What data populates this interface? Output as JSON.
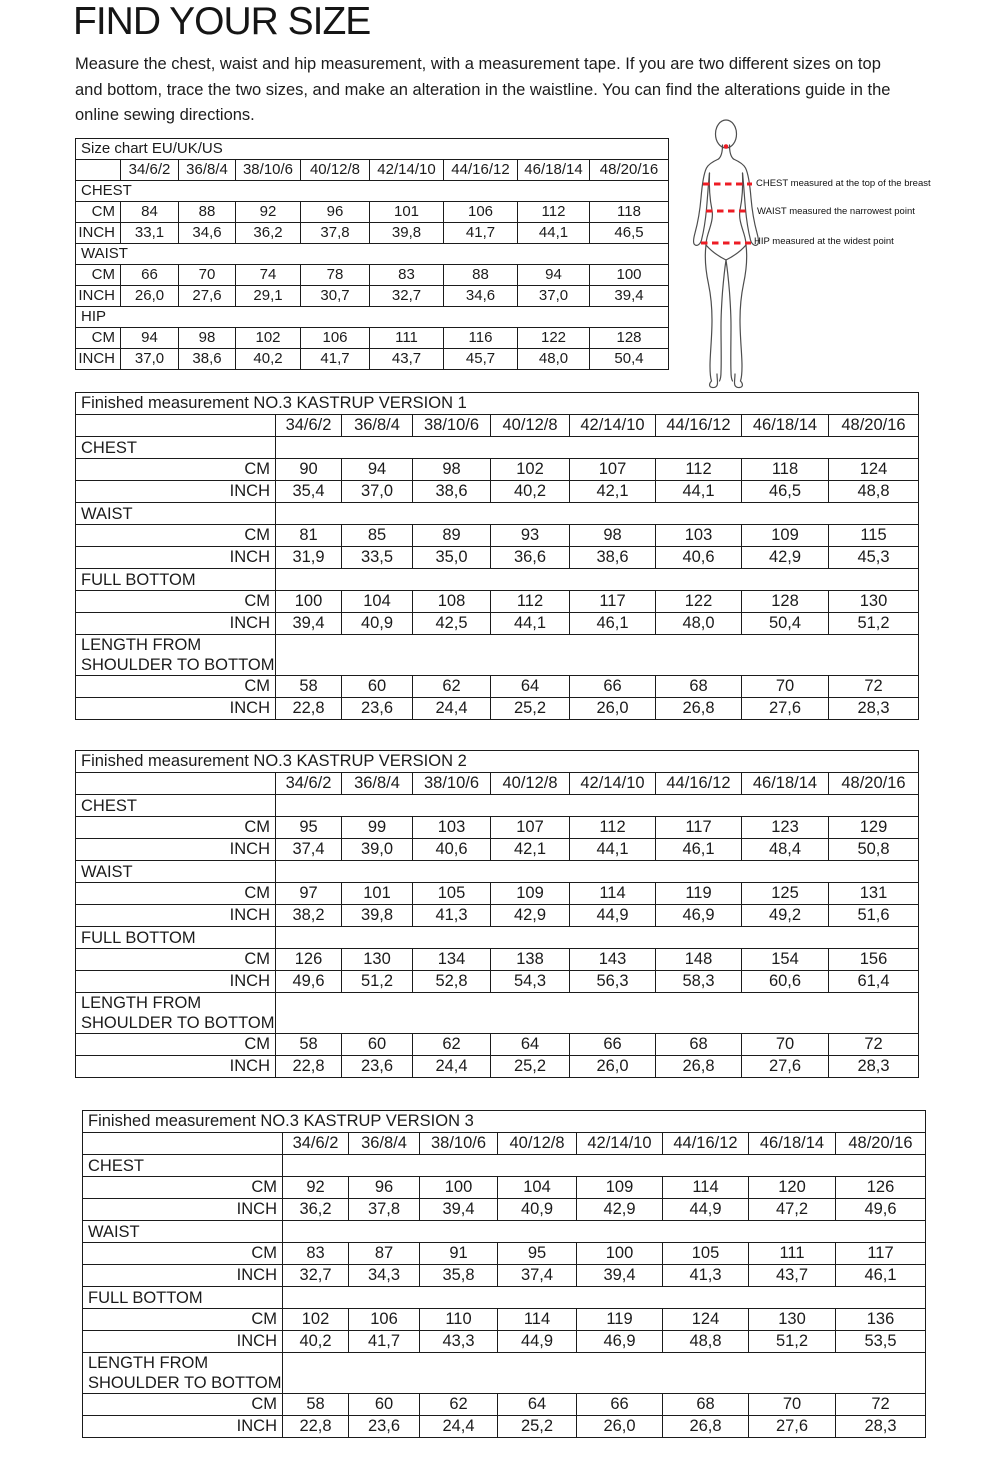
{
  "title": "FIND YOUR SIZE",
  "intro": "Measure the chest, waist and hip measurement, with a measurement tape. If you are two different sizes on top and bottom, trace the two sizes, and make an alteration in the waistline. You can find the alterations guide in the online sewing directions.",
  "sizes": [
    "34/6/2",
    "36/8/4",
    "38/10/6",
    "40/12/8",
    "42/14/10",
    "44/16/12",
    "46/18/14",
    "48/20/16"
  ],
  "row_labels": {
    "cm": "CM",
    "inch": "INCH"
  },
  "colors": {
    "accent_red": "#ed1c24",
    "line_black": "#1b1b1b"
  },
  "figure": {
    "annotations": [
      "CHEST measured at the top of the breast",
      "WAIST measured the narrowest point",
      "HIP measured at the widest point"
    ]
  },
  "size_chart": {
    "title": "Size chart EU/UK/US",
    "sections": [
      {
        "label": "CHEST",
        "cm": [
          "84",
          "88",
          "92",
          "96",
          "101",
          "106",
          "112",
          "118"
        ],
        "inch": [
          "33,1",
          "34,6",
          "36,2",
          "37,8",
          "39,8",
          "41,7",
          "44,1",
          "46,5"
        ]
      },
      {
        "label": "WAIST",
        "cm": [
          "66",
          "70",
          "74",
          "78",
          "83",
          "88",
          "94",
          "100"
        ],
        "inch": [
          "26,0",
          "27,6",
          "29,1",
          "30,7",
          "32,7",
          "34,6",
          "37,0",
          "39,4"
        ]
      },
      {
        "label": "HIP",
        "cm": [
          "94",
          "98",
          "102",
          "106",
          "111",
          "116",
          "122",
          "128"
        ],
        "inch": [
          "37,0",
          "38,6",
          "40,2",
          "41,7",
          "43,7",
          "45,7",
          "48,0",
          "50,4"
        ]
      }
    ]
  },
  "finished_tables": [
    {
      "title": "Finished measurement NO.3 KASTRUP VERSION 1",
      "sections": [
        {
          "label": "CHEST",
          "cm": [
            "90",
            "94",
            "98",
            "102",
            "107",
            "112",
            "118",
            "124"
          ],
          "inch": [
            "35,4",
            "37,0",
            "38,6",
            "40,2",
            "42,1",
            "44,1",
            "46,5",
            "48,8"
          ]
        },
        {
          "label": "WAIST",
          "cm": [
            "81",
            "85",
            "89",
            "93",
            "98",
            "103",
            "109",
            "115"
          ],
          "inch": [
            "31,9",
            "33,5",
            "35,0",
            "36,6",
            "38,6",
            "40,6",
            "42,9",
            "45,3"
          ]
        },
        {
          "label": "FULL BOTTOM",
          "cm": [
            "100",
            "104",
            "108",
            "112",
            "117",
            "122",
            "128",
            "130"
          ],
          "inch": [
            "39,4",
            "40,9",
            "42,5",
            "44,1",
            "46,1",
            "48,0",
            "50,4",
            "51,2"
          ]
        },
        {
          "label": "LENGTH FROM\nSHOULDER TO BOTTOM",
          "cm": [
            "58",
            "60",
            "62",
            "64",
            "66",
            "68",
            "70",
            "72"
          ],
          "inch": [
            "22,8",
            "23,6",
            "24,4",
            "25,2",
            "26,0",
            "26,8",
            "27,6",
            "28,3"
          ]
        }
      ]
    },
    {
      "title": "Finished measurement NO.3 KASTRUP VERSION 2",
      "sections": [
        {
          "label": "CHEST",
          "cm": [
            "95",
            "99",
            "103",
            "107",
            "112",
            "117",
            "123",
            "129"
          ],
          "inch": [
            "37,4",
            "39,0",
            "40,6",
            "42,1",
            "44,1",
            "46,1",
            "48,4",
            "50,8"
          ]
        },
        {
          "label": "WAIST",
          "cm": [
            "97",
            "101",
            "105",
            "109",
            "114",
            "119",
            "125",
            "131"
          ],
          "inch": [
            "38,2",
            "39,8",
            "41,3",
            "42,9",
            "44,9",
            "46,9",
            "49,2",
            "51,6"
          ]
        },
        {
          "label": "FULL BOTTOM",
          "cm": [
            "126",
            "130",
            "134",
            "138",
            "143",
            "148",
            "154",
            "156"
          ],
          "inch": [
            "49,6",
            "51,2",
            "52,8",
            "54,3",
            "56,3",
            "58,3",
            "60,6",
            "61,4"
          ]
        },
        {
          "label": "LENGTH FROM\nSHOULDER TO BOTTOM",
          "cm": [
            "58",
            "60",
            "62",
            "64",
            "66",
            "68",
            "70",
            "72"
          ],
          "inch": [
            "22,8",
            "23,6",
            "24,4",
            "25,2",
            "26,0",
            "26,8",
            "27,6",
            "28,3"
          ]
        }
      ]
    },
    {
      "title": "Finished measurement NO.3 KASTRUP VERSION 3",
      "sections": [
        {
          "label": "CHEST",
          "cm": [
            "92",
            "96",
            "100",
            "104",
            "109",
            "114",
            "120",
            "126"
          ],
          "inch": [
            "36,2",
            "37,8",
            "39,4",
            "40,9",
            "42,9",
            "44,9",
            "47,2",
            "49,6"
          ]
        },
        {
          "label": "WAIST",
          "cm": [
            "83",
            "87",
            "91",
            "95",
            "100",
            "105",
            "111",
            "117"
          ],
          "inch": [
            "32,7",
            "34,3",
            "35,8",
            "37,4",
            "39,4",
            "41,3",
            "43,7",
            "46,1"
          ]
        },
        {
          "label": "FULL BOTTOM",
          "cm": [
            "102",
            "106",
            "110",
            "114",
            "119",
            "124",
            "130",
            "136"
          ],
          "inch": [
            "40,2",
            "41,7",
            "43,3",
            "44,9",
            "46,9",
            "48,8",
            "51,2",
            "53,5"
          ]
        },
        {
          "label": "LENGTH FROM\nSHOULDER TO BOTTOM",
          "cm": [
            "58",
            "60",
            "62",
            "64",
            "66",
            "68",
            "70",
            "72"
          ],
          "inch": [
            "22,8",
            "23,6",
            "24,4",
            "25,2",
            "26,0",
            "26,8",
            "27,6",
            "28,3"
          ]
        }
      ]
    }
  ]
}
